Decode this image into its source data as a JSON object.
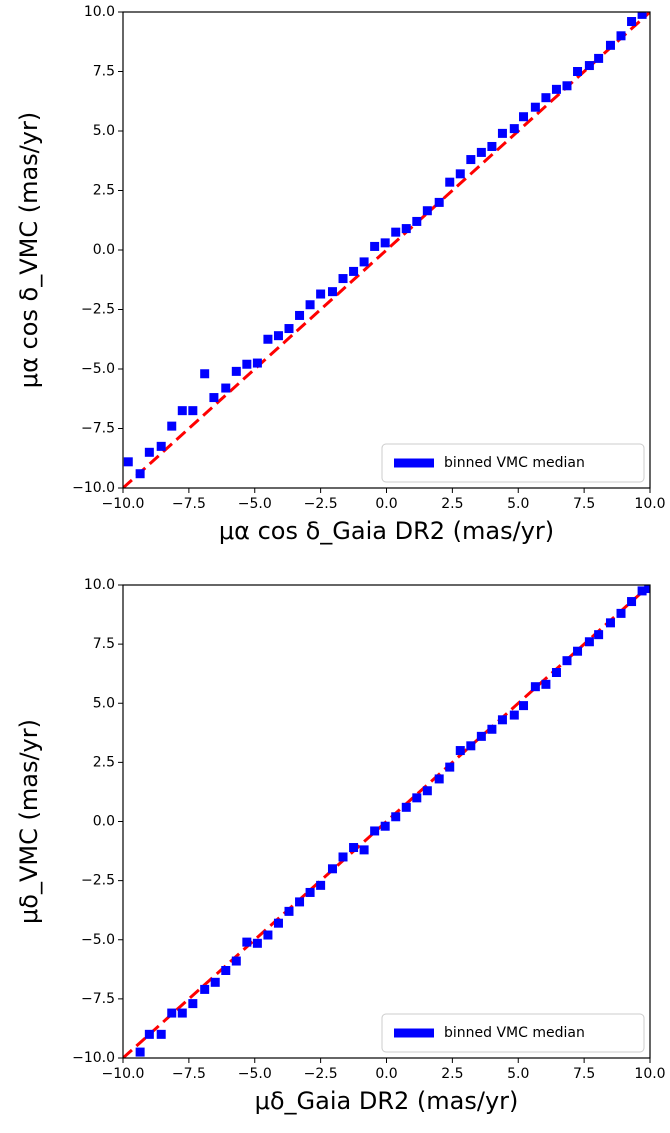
{
  "chart_data": [
    {
      "type": "scatter",
      "xlabel": "μα cos δ_Gaia DR2 (mas/yr)",
      "ylabel": "μα cos δ_VMC (mas/yr)",
      "xlim": [
        -10,
        10
      ],
      "ylim": [
        -10,
        10
      ],
      "xticks": [
        {
          "value": -10,
          "label": "−10.0"
        },
        {
          "value": -7.5,
          "label": "−7.5"
        },
        {
          "value": -5,
          "label": "−5.0"
        },
        {
          "value": -2.5,
          "label": "−2.5"
        },
        {
          "value": 0,
          "label": "0.0"
        },
        {
          "value": 2.5,
          "label": "2.5"
        },
        {
          "value": 5,
          "label": "5.0"
        },
        {
          "value": 7.5,
          "label": "7.5"
        },
        {
          "value": 10,
          "label": "10.0"
        }
      ],
      "yticks": [
        {
          "value": -10,
          "label": "−10.0"
        },
        {
          "value": -7.5,
          "label": "−7.5"
        },
        {
          "value": -5,
          "label": "−5.0"
        },
        {
          "value": -2.5,
          "label": "−2.5"
        },
        {
          "value": 0,
          "label": "0.0"
        },
        {
          "value": 2.5,
          "label": "2.5"
        },
        {
          "value": 5,
          "label": "5.0"
        },
        {
          "value": 7.5,
          "label": "7.5"
        },
        {
          "value": 10,
          "label": "10.0"
        }
      ],
      "legend": "lower right",
      "series": [
        {
          "name": "binned VMC median",
          "color": "#0000ff",
          "x": [
            -9.8,
            -9.35,
            -9.0,
            -8.55,
            -8.15,
            -7.75,
            -7.35,
            -6.9,
            -6.55,
            -6.1,
            -5.7,
            -5.3,
            -4.9,
            -4.5,
            -4.1,
            -3.7,
            -3.3,
            -2.9,
            -2.5,
            -2.05,
            -1.65,
            -1.25,
            -0.85,
            -0.45,
            -0.05,
            0.35,
            0.75,
            1.15,
            1.55,
            2.0,
            2.4,
            2.8,
            3.2,
            3.6,
            4.0,
            4.4,
            4.85,
            5.2,
            5.65,
            6.05,
            6.45,
            6.85,
            7.25,
            7.7,
            8.05,
            8.5,
            8.9,
            9.3,
            9.7
          ],
          "values": [
            -8.9,
            -9.4,
            -8.5,
            -8.25,
            -7.4,
            -6.75,
            -6.75,
            -5.2,
            -6.2,
            -5.8,
            -5.1,
            -4.8,
            -4.75,
            -3.75,
            -3.6,
            -3.3,
            -2.75,
            -2.3,
            -1.85,
            -1.75,
            -1.2,
            -0.9,
            -0.5,
            0.15,
            0.3,
            0.75,
            0.9,
            1.2,
            1.65,
            2.0,
            2.85,
            3.2,
            3.8,
            4.1,
            4.35,
            4.9,
            5.1,
            5.6,
            6.0,
            6.4,
            6.75,
            6.9,
            7.5,
            7.75,
            8.05,
            8.6,
            9.0,
            9.6,
            9.9
          ]
        }
      ],
      "lines": [
        {
          "color": "#ff0000",
          "x": [
            -10,
            10
          ],
          "values": [
            -10,
            10
          ]
        }
      ]
    },
    {
      "type": "scatter",
      "xlabel": "μδ_Gaia DR2 (mas/yr)",
      "ylabel": "μδ_VMC (mas/yr)",
      "xlim": [
        -10,
        10
      ],
      "ylim": [
        -10,
        10
      ],
      "xticks": [
        {
          "value": -10,
          "label": "−10.0"
        },
        {
          "value": -7.5,
          "label": "−7.5"
        },
        {
          "value": -5,
          "label": "−5.0"
        },
        {
          "value": -2.5,
          "label": "−2.5"
        },
        {
          "value": 0,
          "label": "0.0"
        },
        {
          "value": 2.5,
          "label": "2.5"
        },
        {
          "value": 5,
          "label": "5.0"
        },
        {
          "value": 7.5,
          "label": "7.5"
        },
        {
          "value": 10,
          "label": "10.0"
        }
      ],
      "yticks": [
        {
          "value": -10,
          "label": "−10.0"
        },
        {
          "value": -7.5,
          "label": "−7.5"
        },
        {
          "value": -5,
          "label": "−5.0"
        },
        {
          "value": -2.5,
          "label": "−2.5"
        },
        {
          "value": 0,
          "label": "0.0"
        },
        {
          "value": 2.5,
          "label": "2.5"
        },
        {
          "value": 5,
          "label": "5.0"
        },
        {
          "value": 7.5,
          "label": "7.5"
        },
        {
          "value": 10,
          "label": "10.0"
        }
      ],
      "legend": "lower right",
      "series": [
        {
          "name": "binned VMC median",
          "color": "#0000ff",
          "x": [
            -9.35,
            -9.0,
            -8.55,
            -8.15,
            -7.75,
            -7.35,
            -6.9,
            -6.5,
            -6.1,
            -5.7,
            -5.3,
            -4.9,
            -4.5,
            -4.1,
            -3.7,
            -3.3,
            -2.9,
            -2.5,
            -2.05,
            -1.65,
            -1.25,
            -0.85,
            -0.45,
            -0.05,
            0.35,
            0.75,
            1.15,
            1.55,
            2.0,
            2.4,
            2.8,
            3.2,
            3.6,
            4.0,
            4.4,
            4.85,
            5.2,
            5.65,
            6.05,
            6.45,
            6.85,
            7.25,
            7.7,
            8.05,
            8.5,
            8.9,
            9.3,
            9.7,
            9.95
          ],
          "values": [
            -9.75,
            -9.0,
            -9.0,
            -8.1,
            -8.1,
            -7.7,
            -7.1,
            -6.8,
            -6.3,
            -5.9,
            -5.1,
            -5.15,
            -4.8,
            -4.3,
            -3.8,
            -3.4,
            -3.0,
            -2.7,
            -2.0,
            -1.5,
            -1.1,
            -1.2,
            -0.4,
            -0.2,
            0.2,
            0.6,
            1.0,
            1.3,
            1.8,
            2.3,
            3.0,
            3.2,
            3.6,
            3.9,
            4.3,
            4.5,
            4.9,
            5.7,
            5.8,
            6.3,
            6.8,
            7.2,
            7.6,
            7.9,
            8.4,
            8.8,
            9.3,
            9.75,
            9.85
          ]
        }
      ],
      "lines": [
        {
          "color": "#ff0000",
          "x": [
            -10,
            10
          ],
          "values": [
            -10,
            10
          ]
        }
      ]
    }
  ]
}
